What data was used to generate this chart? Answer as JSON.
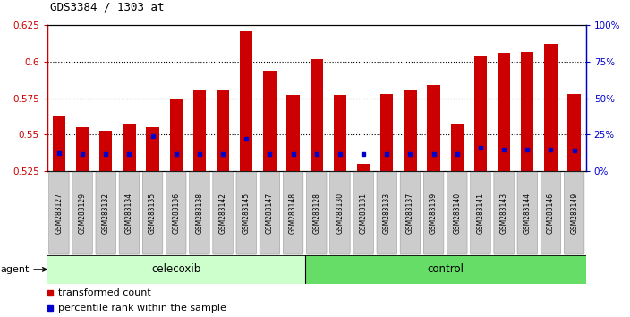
{
  "title": "GDS3384 / 1303_at",
  "samples": [
    "GSM283127",
    "GSM283129",
    "GSM283132",
    "GSM283134",
    "GSM283135",
    "GSM283136",
    "GSM283138",
    "GSM283142",
    "GSM283145",
    "GSM283147",
    "GSM283148",
    "GSM283128",
    "GSM283130",
    "GSM283131",
    "GSM283133",
    "GSM283137",
    "GSM283139",
    "GSM283140",
    "GSM283141",
    "GSM283143",
    "GSM283144",
    "GSM283146",
    "GSM283149"
  ],
  "transformed_count": [
    0.563,
    0.555,
    0.553,
    0.557,
    0.555,
    0.575,
    0.581,
    0.581,
    0.621,
    0.594,
    0.577,
    0.602,
    0.577,
    0.53,
    0.578,
    0.581,
    0.584,
    0.557,
    0.604,
    0.606,
    0.607,
    0.612,
    0.578
  ],
  "percentile_rank": [
    0.5375,
    0.537,
    0.537,
    0.5365,
    0.549,
    0.537,
    0.537,
    0.5365,
    0.547,
    0.537,
    0.537,
    0.537,
    0.537,
    0.537,
    0.537,
    0.5365,
    0.5365,
    0.5365,
    0.541,
    0.54,
    0.54,
    0.54,
    0.539
  ],
  "celecoxib_count": 11,
  "control_count": 12,
  "ymin": 0.525,
  "ymax": 0.625,
  "bar_color": "#cc0000",
  "blue_color": "#0000cc",
  "celecoxib_color": "#ccffcc",
  "control_color": "#66dd66",
  "legend_red": "transformed count",
  "legend_blue": "percentile rank within the sample"
}
